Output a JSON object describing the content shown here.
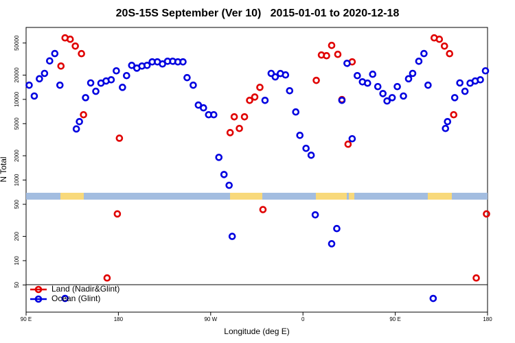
{
  "chart_data": {
    "type": "scatter",
    "title": "20S-15S September (Ver 10)   2015-01-01 to 2020-12-18",
    "x_label": "Longitude (deg E)",
    "y_label": "N Total",
    "log_y": true,
    "legend": "bottom-left",
    "xlim": [
      90,
      540
    ],
    "xticks": [
      {
        "value": 90,
        "label": "90 E"
      },
      {
        "value": 180,
        "label": "180"
      },
      {
        "value": 270,
        "label": "90 W"
      },
      {
        "value": 360,
        "label": "0"
      },
      {
        "value": 450,
        "label": "90 E"
      },
      {
        "value": 540,
        "label": "180"
      }
    ],
    "ylim": [
      23,
      78000
    ],
    "yticks": [
      50,
      100,
      200,
      500,
      1000,
      2000,
      5000,
      10000,
      20000,
      50000
    ],
    "series": [
      {
        "name": "Land (Nadir&Glint)",
        "color": "#e00000",
        "x": [
          124,
          128,
          133,
          138,
          144,
          146,
          169,
          179,
          181,
          289,
          293,
          298,
          303,
          308,
          313,
          318,
          321,
          373,
          378,
          383,
          388,
          394,
          398,
          404,
          408,
          488,
          493,
          498,
          503,
          507,
          529,
          539
        ],
        "values": [
          25900,
          57900,
          55700,
          45800,
          36900,
          6450,
          61,
          380,
          3300,
          3870,
          6080,
          4360,
          6080,
          9730,
          10700,
          14100,
          430,
          17200,
          35500,
          34800,
          46700,
          36200,
          9930,
          2780,
          29200,
          57900,
          55700,
          45800,
          36900,
          6450,
          61,
          380
        ]
      },
      {
        "name": "Ocean (Glint)",
        "color": "#0000e0",
        "x": [
          93,
          98,
          103,
          108,
          113,
          118,
          123,
          128,
          139,
          142,
          148,
          153,
          158,
          163,
          168,
          173,
          178,
          184,
          188,
          193,
          198,
          203,
          208,
          213,
          218,
          223,
          228,
          233,
          238,
          243,
          247,
          253,
          258,
          263,
          268,
          273,
          278,
          283,
          288,
          291,
          323,
          329,
          333,
          338,
          343,
          347,
          353,
          357,
          363,
          368,
          372,
          388,
          393,
          398,
          403,
          408,
          413,
          418,
          423,
          428,
          433,
          438,
          442,
          447,
          452,
          458,
          463,
          467,
          473,
          478,
          482,
          487,
          499,
          501,
          508,
          513,
          518,
          523,
          528,
          533,
          538
        ],
        "values": [
          15000,
          11000,
          18000,
          21000,
          30000,
          37000,
          15000,
          34,
          4300,
          5300,
          10500,
          16000,
          12600,
          15900,
          16900,
          17500,
          22600,
          14100,
          19700,
          26400,
          24400,
          25900,
          26400,
          29200,
          29200,
          27500,
          29700,
          29700,
          29200,
          29200,
          18600,
          15000,
          8500,
          7850,
          6450,
          6450,
          1910,
          1170,
          860,
          200,
          9730,
          21000,
          19000,
          20900,
          20100,
          12800,
          6980,
          3580,
          2470,
          2030,
          370,
          162,
          250,
          9730,
          28000,
          3250,
          19700,
          16500,
          15900,
          20500,
          14400,
          11800,
          9550,
          10500,
          14400,
          11000,
          18000,
          21000,
          29700,
          37000,
          15000,
          34,
          4360,
          5300,
          10500,
          16000,
          12600,
          15900,
          16900,
          17500,
          22600
        ]
      }
    ]
  }
}
